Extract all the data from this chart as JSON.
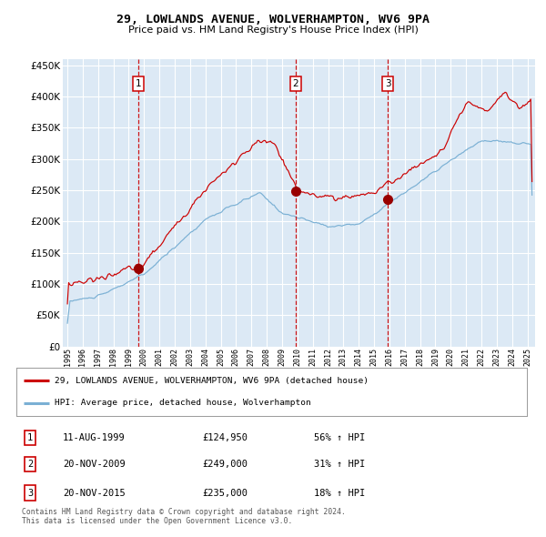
{
  "title": "29, LOWLANDS AVENUE, WOLVERHAMPTON, WV6 9PA",
  "subtitle": "Price paid vs. HM Land Registry's House Price Index (HPI)",
  "bg_color": "#dce9f5",
  "line1_color": "#cc0000",
  "line2_color": "#7ab0d4",
  "marker_color": "#990000",
  "vline_color": "#cc0000",
  "transactions": [
    {
      "date_year": 1999.62,
      "price": 124950,
      "label": "1"
    },
    {
      "date_year": 2009.89,
      "price": 249000,
      "label": "2"
    },
    {
      "date_year": 2015.89,
      "price": 235000,
      "label": "3"
    }
  ],
  "legend_entries": [
    "29, LOWLANDS AVENUE, WOLVERHAMPTON, WV6 9PA (detached house)",
    "HPI: Average price, detached house, Wolverhampton"
  ],
  "table_rows": [
    {
      "num": "1",
      "date": "11-AUG-1999",
      "price": "£124,950",
      "change": "56% ↑ HPI"
    },
    {
      "num": "2",
      "date": "20-NOV-2009",
      "price": "£249,000",
      "change": "31% ↑ HPI"
    },
    {
      "num": "3",
      "date": "20-NOV-2015",
      "price": "£235,000",
      "change": "18% ↑ HPI"
    }
  ],
  "footer": "Contains HM Land Registry data © Crown copyright and database right 2024.\nThis data is licensed under the Open Government Licence v3.0.",
  "ylim": [
    0,
    460000
  ],
  "xlim_start": 1994.7,
  "xlim_end": 2025.5
}
